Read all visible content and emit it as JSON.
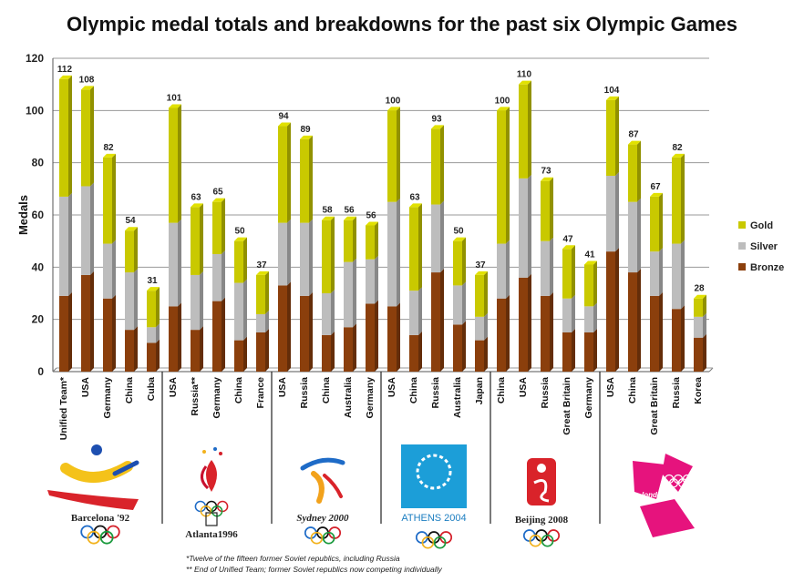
{
  "title": "Olympic medal totals and breakdowns for the past six Olympic Games",
  "colors": {
    "gold": "#c9c900",
    "silver": "#bdbdbd",
    "bronze": "#8b3f0c"
  },
  "chart_data": {
    "type": "bar",
    "stacked": true,
    "ylabel": "Medals",
    "ylim": [
      0,
      120
    ],
    "yticks": [
      0,
      20,
      40,
      60,
      80,
      100,
      120
    ],
    "grid": true,
    "legend_position": "right",
    "legend": [
      "Gold",
      "Silver",
      "Bronze"
    ],
    "games": [
      {
        "logo_text": "Barcelona '92",
        "categories": [
          "Unified Team*",
          "USA",
          "Germany",
          "China",
          "Cuba"
        ],
        "bronze": [
          29,
          37,
          28,
          16,
          11
        ],
        "silver": [
          38,
          34,
          21,
          22,
          6
        ],
        "gold": [
          45,
          37,
          33,
          16,
          14
        ],
        "totals": [
          112,
          108,
          82,
          54,
          31
        ]
      },
      {
        "logo_text": "Atlanta1996",
        "categories": [
          "USA",
          "Russia**",
          "Germany",
          "China",
          "France"
        ],
        "bronze": [
          25,
          16,
          27,
          12,
          15
        ],
        "silver": [
          32,
          21,
          18,
          22,
          7
        ],
        "gold": [
          44,
          26,
          20,
          16,
          15
        ],
        "totals": [
          101,
          63,
          65,
          50,
          37
        ]
      },
      {
        "logo_text": "Sydney 2000",
        "categories": [
          "USA",
          "Russia",
          "China",
          "Australia",
          "Germany"
        ],
        "bronze": [
          33,
          29,
          14,
          17,
          26
        ],
        "silver": [
          24,
          28,
          16,
          25,
          17
        ],
        "gold": [
          37,
          32,
          28,
          16,
          13
        ],
        "totals": [
          94,
          89,
          58,
          56,
          56
        ]
      },
      {
        "logo_text": "ATHENS 2004",
        "categories": [
          "USA",
          "China",
          "Russia",
          "Australia",
          "Japan"
        ],
        "bronze": [
          25,
          14,
          38,
          18,
          12
        ],
        "silver": [
          40,
          17,
          26,
          15,
          9
        ],
        "gold": [
          35,
          32,
          29,
          17,
          16
        ],
        "totals": [
          100,
          63,
          93,
          50,
          37
        ]
      },
      {
        "logo_text": "Beijing 2008",
        "categories": [
          "China",
          "USA",
          "Russia",
          "Great Britain",
          "Germany"
        ],
        "bronze": [
          28,
          36,
          29,
          15,
          15
        ],
        "silver": [
          21,
          38,
          21,
          13,
          10
        ],
        "gold": [
          51,
          36,
          23,
          19,
          16
        ],
        "totals": [
          100,
          110,
          73,
          47,
          41
        ]
      },
      {
        "logo_text": "london",
        "categories": [
          "USA",
          "China",
          "Great Britain",
          "Russia",
          "Korea"
        ],
        "bronze": [
          46,
          38,
          29,
          24,
          13
        ],
        "silver": [
          29,
          27,
          17,
          25,
          8
        ],
        "gold": [
          29,
          22,
          21,
          33,
          7
        ],
        "totals": [
          104,
          87,
          67,
          82,
          28
        ]
      }
    ]
  },
  "footnotes": [
    "*Twelve of the fifteen former Soviet republics, including Russia",
    "** End of Unified Team; former Soviet republics now competing individually"
  ]
}
